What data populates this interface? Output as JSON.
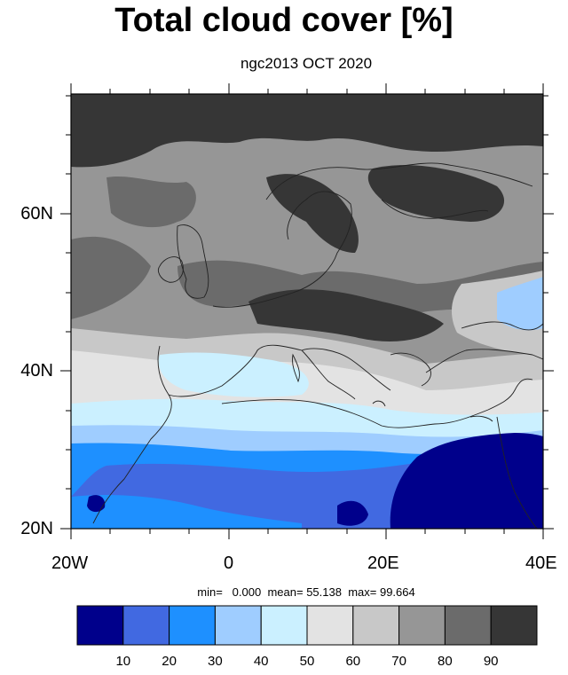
{
  "title": "Total cloud cover [%]",
  "subtitle": "ngc2013 OCT 2020",
  "lat_labels": [
    "60N",
    "40N",
    "20N"
  ],
  "lon_labels": [
    "20W",
    "0",
    "20E",
    "40E"
  ],
  "stats": {
    "min_label": "min=",
    "min_value": "0.000",
    "mean_label": "mean=",
    "mean_value": "55.138",
    "max_label": "max=",
    "max_value": "99.664"
  },
  "colorbar": {
    "colors": [
      "#00008b",
      "#4169e1",
      "#1e90ff",
      "#9fcdff",
      "#cbf0ff",
      "#e3e3e3",
      "#c8c8c8",
      "#969696",
      "#6b6b6b",
      "#363636"
    ],
    "tick_labels": [
      "10",
      "20",
      "30",
      "40",
      "50",
      "60",
      "70",
      "80",
      "90"
    ]
  },
  "map": {
    "region": "Europe / North Africa",
    "lon_range": [
      -20,
      40
    ],
    "lat_range": [
      20,
      76
    ]
  }
}
